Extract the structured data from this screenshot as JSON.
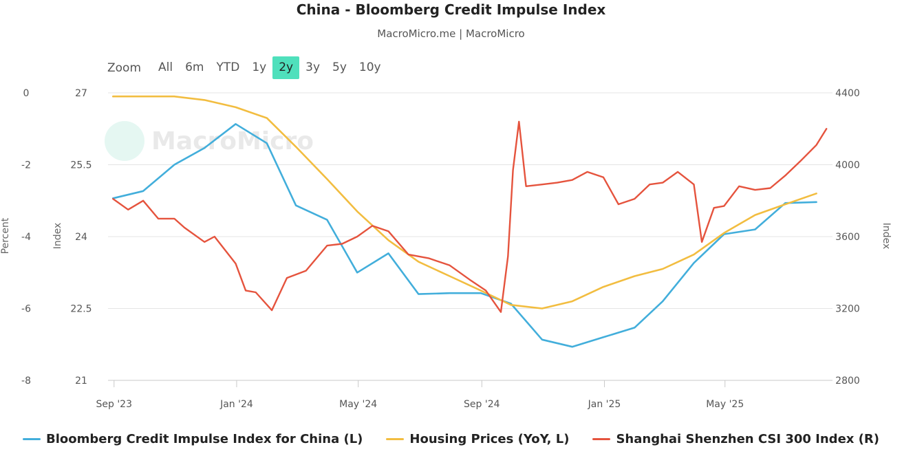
{
  "header": {
    "title": "China - Bloomberg Credit Impulse Index",
    "subtitle": "MacroMicro.me | MacroMicro"
  },
  "watermark": {
    "text": "MacroMicro"
  },
  "range_selector": {
    "label": "Zoom",
    "buttons": [
      "All",
      "6m",
      "YTD",
      "1y",
      "2y",
      "3y",
      "5y",
      "10y"
    ],
    "selected": "2y"
  },
  "chart_data": {
    "type": "line",
    "x_ticks": [
      "Sep '23",
      "Jan '24",
      "May '24",
      "Sep '24",
      "Jan '25",
      "May '25"
    ],
    "axes": {
      "left_outer": {
        "label": "Percent",
        "ticks": [
          "0",
          "-2",
          "-4",
          "-6",
          "-8"
        ],
        "range": [
          -8,
          0
        ]
      },
      "left_inner": {
        "label": "Index",
        "ticks": [
          "27",
          "25.5",
          "24",
          "22.5",
          "21"
        ],
        "range": [
          21,
          27
        ]
      },
      "right": {
        "label": "Index",
        "ticks": [
          "4400",
          "4000",
          "3600",
          "3200",
          "2800"
        ],
        "range": [
          2800,
          4400
        ]
      }
    },
    "grid": true,
    "series": [
      {
        "name": "Bloomberg Credit Impulse Index for China (L)",
        "axis": "left_inner",
        "color": "#42aedb",
        "points": [
          [
            "2023-08-31",
            24.8
          ],
          [
            "2023-09-30",
            24.95
          ],
          [
            "2023-10-31",
            25.5
          ],
          [
            "2023-11-30",
            25.85
          ],
          [
            "2023-12-31",
            26.35
          ],
          [
            "2024-01-31",
            25.95
          ],
          [
            "2024-02-29",
            24.65
          ],
          [
            "2024-03-31",
            24.35
          ],
          [
            "2024-04-30",
            23.25
          ],
          [
            "2024-05-31",
            23.65
          ],
          [
            "2024-06-30",
            22.8
          ],
          [
            "2024-07-31",
            22.82
          ],
          [
            "2024-08-31",
            22.82
          ],
          [
            "2024-09-30",
            22.6
          ],
          [
            "2024-10-31",
            21.85
          ],
          [
            "2024-11-30",
            21.7
          ],
          [
            "2024-12-31",
            21.9
          ],
          [
            "2025-01-31",
            22.1
          ],
          [
            "2025-02-28",
            22.65
          ],
          [
            "2025-03-31",
            23.45
          ],
          [
            "2025-04-30",
            24.05
          ],
          [
            "2025-05-31",
            24.15
          ],
          [
            "2025-06-30",
            24.7
          ],
          [
            "2025-07-31",
            24.72
          ]
        ]
      },
      {
        "name": "Housing Prices (YoY, L)",
        "axis": "left_outer",
        "color": "#f2bd40",
        "points": [
          [
            "2023-08-31",
            -0.1
          ],
          [
            "2023-09-30",
            -0.1
          ],
          [
            "2023-10-31",
            -0.1
          ],
          [
            "2023-11-30",
            -0.2
          ],
          [
            "2023-12-31",
            -0.4
          ],
          [
            "2024-01-31",
            -0.7
          ],
          [
            "2024-02-29",
            -1.5
          ],
          [
            "2024-03-31",
            -2.4
          ],
          [
            "2024-04-30",
            -3.3
          ],
          [
            "2024-05-31",
            -4.1
          ],
          [
            "2024-06-30",
            -4.7
          ],
          [
            "2024-07-31",
            -5.1
          ],
          [
            "2024-08-31",
            -5.5
          ],
          [
            "2024-09-30",
            -5.9
          ],
          [
            "2024-10-31",
            -6.0
          ],
          [
            "2024-11-30",
            -5.8
          ],
          [
            "2024-12-31",
            -5.4
          ],
          [
            "2025-01-31",
            -5.1
          ],
          [
            "2025-02-28",
            -4.9
          ],
          [
            "2025-03-31",
            -4.5
          ],
          [
            "2025-04-30",
            -3.9
          ],
          [
            "2025-05-31",
            -3.4
          ],
          [
            "2025-06-30",
            -3.1
          ],
          [
            "2025-07-31",
            -2.8
          ]
        ]
      },
      {
        "name": "Shanghai Shenzhen CSI 300 Index (R)",
        "axis": "right",
        "color": "#e5533d",
        "points": [
          [
            "2023-08-31",
            3810
          ],
          [
            "2023-09-15",
            3750
          ],
          [
            "2023-09-30",
            3800
          ],
          [
            "2023-10-15",
            3700
          ],
          [
            "2023-10-31",
            3700
          ],
          [
            "2023-11-10",
            3650
          ],
          [
            "2023-11-30",
            3570
          ],
          [
            "2023-12-10",
            3600
          ],
          [
            "2023-12-31",
            3450
          ],
          [
            "2024-01-10",
            3300
          ],
          [
            "2024-01-20",
            3290
          ],
          [
            "2024-02-05",
            3190
          ],
          [
            "2024-02-20",
            3370
          ],
          [
            "2024-03-10",
            3410
          ],
          [
            "2024-03-31",
            3550
          ],
          [
            "2024-04-15",
            3560
          ],
          [
            "2024-04-30",
            3600
          ],
          [
            "2024-05-15",
            3660
          ],
          [
            "2024-05-31",
            3630
          ],
          [
            "2024-06-20",
            3500
          ],
          [
            "2024-07-10",
            3480
          ],
          [
            "2024-07-31",
            3440
          ],
          [
            "2024-08-20",
            3360
          ],
          [
            "2024-09-05",
            3300
          ],
          [
            "2024-09-20",
            3180
          ],
          [
            "2024-09-27",
            3490
          ],
          [
            "2024-10-02",
            3970
          ],
          [
            "2024-10-08",
            4240
          ],
          [
            "2024-10-15",
            3880
          ],
          [
            "2024-10-31",
            3890
          ],
          [
            "2024-11-15",
            3900
          ],
          [
            "2024-11-30",
            3915
          ],
          [
            "2024-12-15",
            3960
          ],
          [
            "2024-12-31",
            3930
          ],
          [
            "2025-01-15",
            3780
          ],
          [
            "2025-01-31",
            3810
          ],
          [
            "2025-02-15",
            3890
          ],
          [
            "2025-02-28",
            3900
          ],
          [
            "2025-03-15",
            3960
          ],
          [
            "2025-03-31",
            3890
          ],
          [
            "2025-04-08",
            3570
          ],
          [
            "2025-04-20",
            3760
          ],
          [
            "2025-04-30",
            3770
          ],
          [
            "2025-05-15",
            3880
          ],
          [
            "2025-05-31",
            3860
          ],
          [
            "2025-06-15",
            3870
          ],
          [
            "2025-06-30",
            3940
          ],
          [
            "2025-07-15",
            4020
          ],
          [
            "2025-07-31",
            4110
          ],
          [
            "2025-08-10",
            4200
          ]
        ]
      }
    ]
  }
}
